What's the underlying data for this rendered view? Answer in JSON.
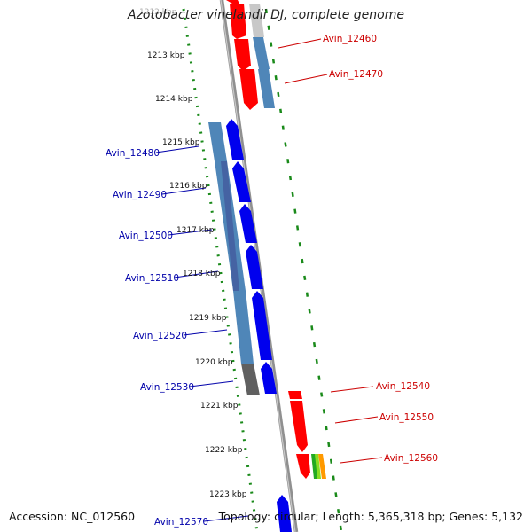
{
  "title": "Azotobacter vinelandii DJ, complete genome",
  "accession": "Accession: NC_012560",
  "topology": "Topology: circular; Length: 5,365,318 bp; Genes: 5,132",
  "colors": {
    "forward_gene": "#ff0000",
    "reverse_gene": "#0000ee",
    "cds_track": "#4f86b8",
    "backbone": "#808080",
    "gc_track": "#1a8a1a",
    "fwd_label": "#cc0000",
    "rev_label": "#0000aa"
  },
  "ticks": [
    "1212 kbp",
    "1213 kbp",
    "1214 kbp",
    "1215 kbp",
    "1216 kbp",
    "1217 kbp",
    "1218 kbp",
    "1219 kbp",
    "1220 kbp",
    "1221 kbp",
    "1222 kbp",
    "1223 kbp"
  ],
  "forward_genes": [
    {
      "label": "Avin_12460"
    },
    {
      "label": "Avin_12470"
    },
    {
      "label": "Avin_12540"
    },
    {
      "label": "Avin_12550"
    },
    {
      "label": "Avin_12560"
    }
  ],
  "reverse_genes": [
    {
      "label": "Avin_12480"
    },
    {
      "label": "Avin_12490"
    },
    {
      "label": "Avin_12500"
    },
    {
      "label": "Avin_12510"
    },
    {
      "label": "Avin_12520"
    },
    {
      "label": "Avin_12530"
    },
    {
      "label": "Avin_12570"
    }
  ]
}
